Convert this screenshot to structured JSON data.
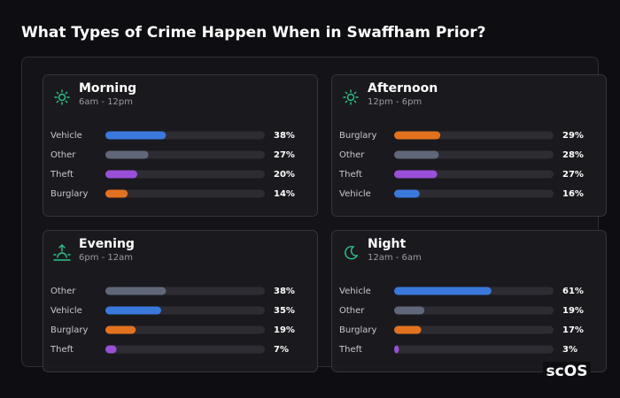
{
  "title": "What Types of Crime Happen When in Swaffham Prior?",
  "brand": "scOS",
  "chart_data": [
    {
      "type": "bar",
      "title": "Morning",
      "subtitle": "6am - 12pm",
      "categories": [
        "Vehicle",
        "Other",
        "Theft",
        "Burglary"
      ],
      "values": [
        38,
        27,
        20,
        14
      ],
      "value_labels": [
        "38%",
        "27%",
        "20%",
        "14%"
      ],
      "colors": [
        "#3b78dc",
        "#606778",
        "#9a4fd8",
        "#e2721f"
      ],
      "xlim": [
        0,
        100
      ]
    },
    {
      "type": "bar",
      "title": "Afternoon",
      "subtitle": "12pm - 6pm",
      "categories": [
        "Burglary",
        "Other",
        "Theft",
        "Vehicle"
      ],
      "values": [
        29,
        28,
        27,
        16
      ],
      "value_labels": [
        "29%",
        "28%",
        "27%",
        "16%"
      ],
      "colors": [
        "#e2721f",
        "#606778",
        "#9a4fd8",
        "#3b78dc"
      ],
      "xlim": [
        0,
        100
      ]
    },
    {
      "type": "bar",
      "title": "Evening",
      "subtitle": "6pm - 12am",
      "categories": [
        "Other",
        "Vehicle",
        "Burglary",
        "Theft"
      ],
      "values": [
        38,
        35,
        19,
        7
      ],
      "value_labels": [
        "38%",
        "35%",
        "19%",
        "7%"
      ],
      "colors": [
        "#606778",
        "#3b78dc",
        "#e2721f",
        "#9a4fd8"
      ],
      "xlim": [
        0,
        100
      ]
    },
    {
      "type": "bar",
      "title": "Night",
      "subtitle": "12am - 6am",
      "categories": [
        "Vehicle",
        "Other",
        "Burglary",
        "Theft"
      ],
      "values": [
        61,
        19,
        17,
        3
      ],
      "value_labels": [
        "61%",
        "19%",
        "17%",
        "3%"
      ],
      "colors": [
        "#3b78dc",
        "#606778",
        "#e2721f",
        "#9a4fd8"
      ],
      "xlim": [
        0,
        100
      ]
    }
  ]
}
